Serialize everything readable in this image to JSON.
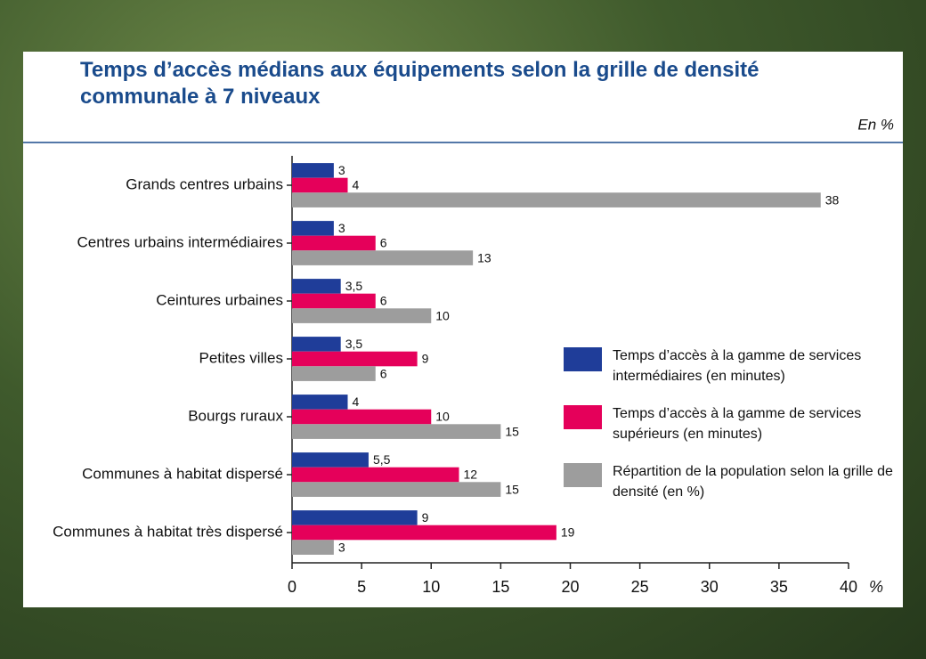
{
  "chart_data": {
    "type": "hbar",
    "title": "Temps d’accès médians aux équipements selon la grille de densité communale à 7 niveaux",
    "unit_note": "En %",
    "x_unit": "%",
    "categories": [
      "Grands centres urbains",
      "Centres urbains intermédiaires",
      "Ceintures urbaines",
      "Petites villes",
      "Bourgs ruraux",
      "Communes à habitat dispersé",
      "Communes à habitat très dispersé"
    ],
    "series": [
      {
        "name": "Temps d’accès à la gamme de services intermédiaires (en minutes)",
        "color": "#1f3d99",
        "values": [
          3,
          3,
          3.5,
          3.5,
          4,
          5.5,
          9
        ],
        "value_labels": [
          "3",
          "3",
          "3,5",
          "3,5",
          "4",
          "5,5",
          "9"
        ]
      },
      {
        "name": "Temps d’accès à la gamme de services supérieurs (en minutes)",
        "color": "#e5005a",
        "values": [
          4,
          6,
          6,
          9,
          10,
          12,
          19
        ]
      },
      {
        "name": "Répartition de la population selon la grille de densité (en %)",
        "color": "#9d9d9d",
        "values": [
          38,
          13,
          10,
          6,
          15,
          15,
          3
        ]
      }
    ],
    "xlim": [
      0,
      40
    ],
    "xticks": [
      0,
      5,
      10,
      15,
      20,
      25,
      30,
      35,
      40
    ]
  }
}
